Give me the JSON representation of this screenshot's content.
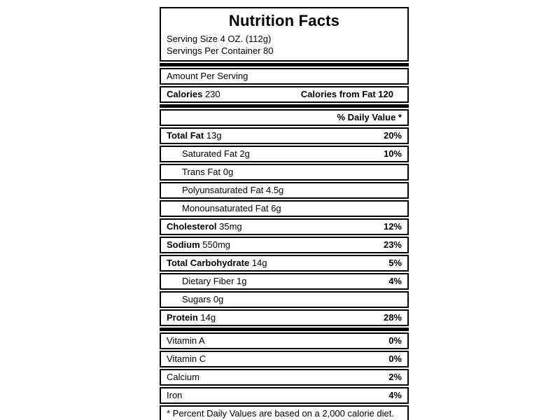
{
  "label": {
    "title": "Nutrition Facts",
    "serving_size": "Serving Size 4 OZ. (112g)",
    "servings_per_container": "Servings Per Container 80",
    "amount_per_serving": "Amount Per Serving",
    "calories_label": "Calories",
    "calories_value": "230",
    "calories_from_fat": "Calories from Fat 120",
    "daily_value_header": "% Daily Value *",
    "footnote": "* Percent Daily Values are based on a 2,000 calorie diet."
  },
  "nutrients": [
    {
      "label": "Total Fat",
      "amount": "13g",
      "dv": "20%",
      "bold": true,
      "indent": false
    },
    {
      "label": "Saturated Fat",
      "amount": "2g",
      "dv": "10%",
      "bold": false,
      "indent": true
    },
    {
      "label": "Trans Fat",
      "amount": "0g",
      "dv": "",
      "bold": false,
      "indent": true
    },
    {
      "label": "Polyunsaturated Fat",
      "amount": "4.5g",
      "dv": "",
      "bold": false,
      "indent": true
    },
    {
      "label": "Monounsaturated Fat",
      "amount": "6g",
      "dv": "",
      "bold": false,
      "indent": true
    },
    {
      "label": "Cholesterol",
      "amount": "35mg",
      "dv": "12%",
      "bold": true,
      "indent": false
    },
    {
      "label": "Sodium",
      "amount": "550mg",
      "dv": "23%",
      "bold": true,
      "indent": false
    },
    {
      "label": "Total Carbohydrate",
      "amount": "14g",
      "dv": "5%",
      "bold": true,
      "indent": false
    },
    {
      "label": "Dietary Fiber",
      "amount": "1g",
      "dv": "4%",
      "bold": false,
      "indent": true
    },
    {
      "label": "Sugars",
      "amount": "0g",
      "dv": "",
      "bold": false,
      "indent": true
    },
    {
      "label": "Protein",
      "amount": "14g",
      "dv": "28%",
      "bold": true,
      "indent": false
    }
  ],
  "vitamins": [
    {
      "label": "Vitamin A",
      "dv": "0%"
    },
    {
      "label": "Vitamin C",
      "dv": "0%"
    },
    {
      "label": "Calcium",
      "dv": "2%"
    },
    {
      "label": "Iron",
      "dv": "4%"
    }
  ],
  "colors": {
    "text": "#000000",
    "border": "#000000",
    "background": "#ffffff"
  }
}
